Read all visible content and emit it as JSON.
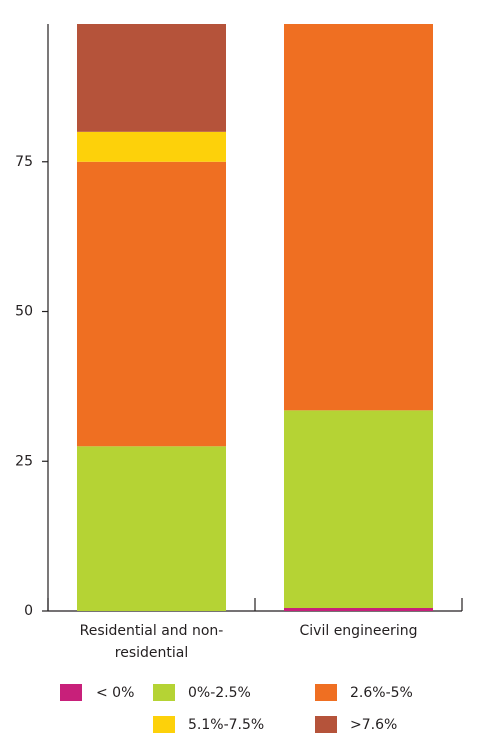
{
  "chart_data": {
    "type": "stacked-bar",
    "categories": [
      "Residential and non-residential",
      "Civil engineering"
    ],
    "series": [
      {
        "name": "< 0%",
        "color": "#c8207a",
        "values": [
          0,
          0.5
        ]
      },
      {
        "name": "0%-2.5%",
        "color": "#b5d334",
        "values": [
          27.5,
          33
        ]
      },
      {
        "name": "2.6%-5%",
        "color": "#ef6f22",
        "values": [
          47.5,
          64.5
        ]
      },
      {
        "name": "5.1%-7.5%",
        "color": "#fdd10a",
        "values": [
          5,
          0
        ]
      },
      {
        "name": ">7.6%",
        "color": "#b5533a",
        "values": [
          18,
          0
        ]
      }
    ],
    "ylim": [
      0,
      98
    ],
    "yticks": [
      0,
      25,
      50,
      75
    ],
    "grid": false
  }
}
